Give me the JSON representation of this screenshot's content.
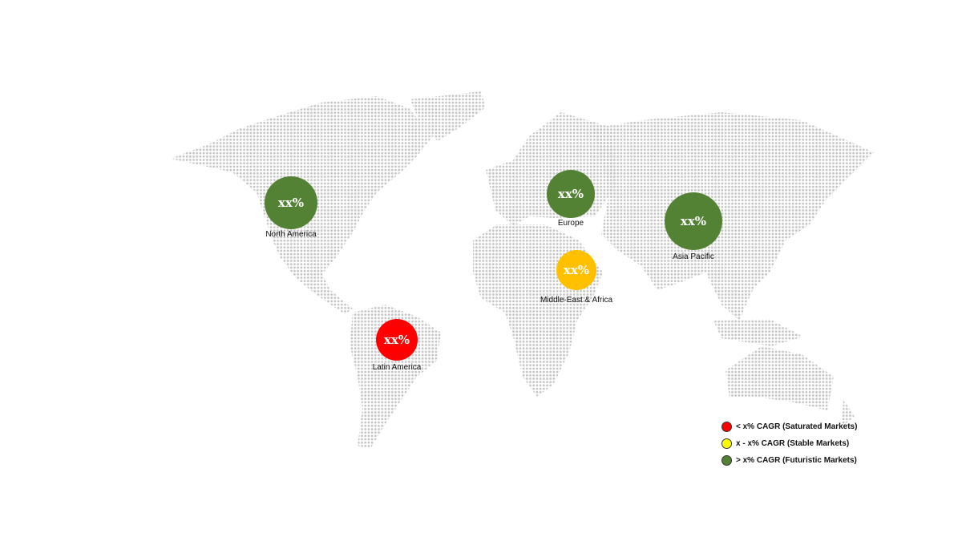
{
  "regions": [
    {
      "name": "North America",
      "value": "xx%",
      "color": "#548235",
      "category": "futuristic"
    },
    {
      "name": "Europe",
      "value": "xx%",
      "color": "#548235",
      "category": "futuristic"
    },
    {
      "name": "Asia Pacific",
      "value": "xx%",
      "color": "#548235",
      "category": "futuristic"
    },
    {
      "name": "Middle-East & Africa",
      "value": "xx%",
      "color": "#FFC000",
      "category": "stable"
    },
    {
      "name": "Latin America",
      "value": "xx%",
      "color": "#FF0000",
      "category": "saturated"
    }
  ],
  "legend": [
    {
      "label": "< x% CAGR (Saturated Markets)",
      "color": "#FF0000"
    },
    {
      "label": "x - x% CAGR (Stable Markets)",
      "color": "#FFFF00"
    },
    {
      "label": "> x% CAGR (Futuristic Markets)",
      "color": "#548235"
    }
  ],
  "map_dot_color": "#c4c4c4"
}
